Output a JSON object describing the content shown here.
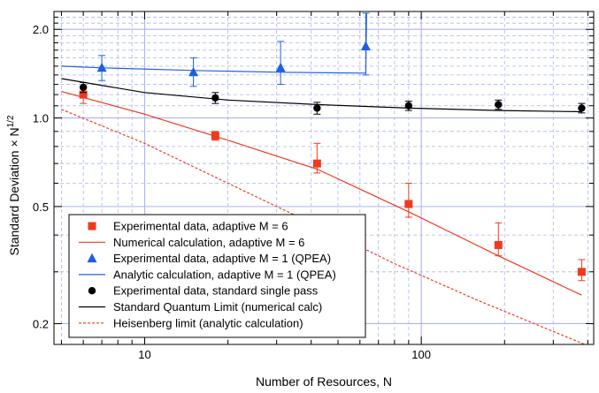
{
  "chart_data": {
    "type": "scatter",
    "xlabel": "Number of Resources, N",
    "ylabel": "Standard Deviation × N",
    "ylabel_sup": "1/2",
    "x_scale": "log",
    "y_scale": "log",
    "xlim": [
      4.7,
      420
    ],
    "ylim": [
      0.17,
      2.3
    ],
    "x_ticks": [
      10,
      100
    ],
    "x_tick_labels": [
      "10",
      "100"
    ],
    "y_ticks": [
      0.2,
      0.5,
      1.0,
      2.0
    ],
    "y_tick_labels": [
      "0.2",
      "0.5",
      "1.0",
      "2.0"
    ],
    "grid": true,
    "legend_position": "bottom-left",
    "colors": {
      "red": "#ee3b1c",
      "blue": "#1f5fe0",
      "black": "#000000",
      "grid": "#aab4f2"
    },
    "series": [
      {
        "name": "Experimental data, adaptive M = 6",
        "kind": "points",
        "marker": "square",
        "color": "#ee3b1c",
        "x": [
          6,
          18,
          42,
          90,
          190,
          380
        ],
        "y": [
          1.2,
          0.87,
          0.7,
          0.51,
          0.37,
          0.3
        ],
        "err_lo": [
          1.12,
          0.84,
          0.65,
          0.46,
          0.34,
          0.28
        ],
        "err_hi": [
          1.28,
          0.9,
          0.82,
          0.6,
          0.44,
          0.33
        ]
      },
      {
        "name": "Numerical calculation, adaptive M = 6",
        "kind": "line",
        "dash": "solid",
        "color": "#ee3b1c",
        "x": [
          5,
          10,
          20,
          42,
          90,
          190,
          380
        ],
        "y": [
          1.23,
          1.03,
          0.84,
          0.67,
          0.48,
          0.34,
          0.25
        ]
      },
      {
        "name": "Experimental data, adaptive M = 1 (QPEA)",
        "kind": "points",
        "marker": "triangle",
        "color": "#1f5fe0",
        "x": [
          7,
          15,
          31,
          63
        ],
        "y": [
          1.48,
          1.43,
          1.48,
          1.75
        ],
        "err_lo": [
          1.34,
          1.28,
          1.3,
          1.4
        ],
        "err_hi": [
          1.63,
          1.6,
          1.82,
          2.27
        ]
      },
      {
        "name": "Analytic calculation, adaptive M = 1 (QPEA)",
        "kind": "line",
        "dash": "solid",
        "color": "#1f5fe0",
        "x": [
          5,
          7,
          15,
          31,
          63,
          63.4
        ],
        "y": [
          1.5,
          1.48,
          1.45,
          1.43,
          1.42,
          2.27
        ]
      },
      {
        "name": "Experimental data, standard single pass",
        "kind": "points",
        "marker": "circle",
        "color": "#000000",
        "x": [
          6,
          18,
          42,
          90,
          190,
          380
        ],
        "y": [
          1.27,
          1.17,
          1.08,
          1.1,
          1.11,
          1.08
        ],
        "err_lo": [
          1.22,
          1.12,
          1.03,
          1.06,
          1.07,
          1.04
        ],
        "err_hi": [
          1.32,
          1.22,
          1.13,
          1.14,
          1.15,
          1.12
        ]
      },
      {
        "name": "Standard Quantum Limit (numerical calc)",
        "kind": "line",
        "dash": "solid",
        "color": "#000000",
        "x": [
          5,
          10,
          20,
          42,
          90,
          190,
          380
        ],
        "y": [
          1.36,
          1.22,
          1.15,
          1.11,
          1.08,
          1.06,
          1.05
        ]
      },
      {
        "name": "Heisenberg limit (analytic calculation)",
        "kind": "line",
        "dash": "dashed",
        "color": "#ee3b1c",
        "x": [
          5,
          10,
          20,
          40,
          80,
          160,
          390
        ],
        "y": [
          1.07,
          0.82,
          0.6,
          0.44,
          0.32,
          0.24,
          0.17
        ]
      }
    ]
  }
}
